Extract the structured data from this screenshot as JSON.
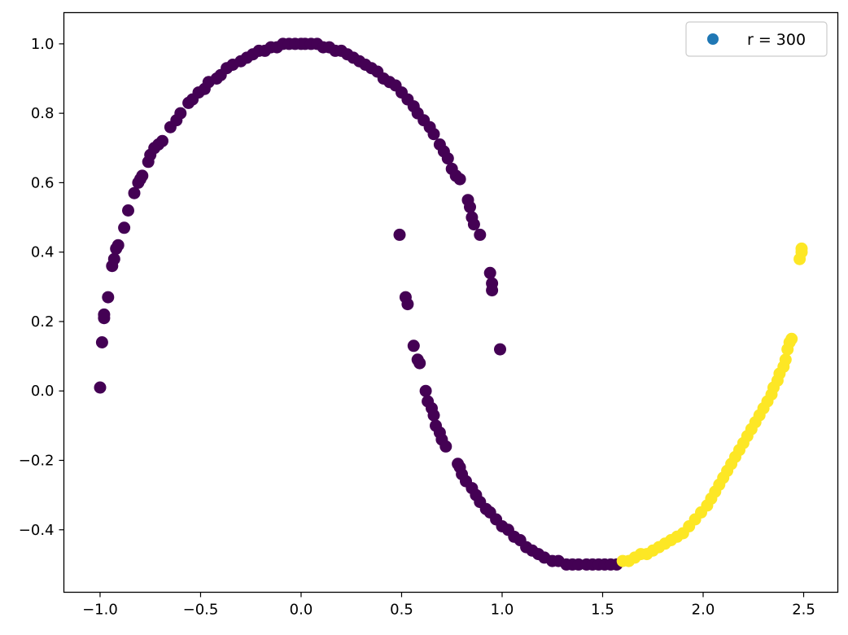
{
  "chart_data": {
    "type": "scatter",
    "title": "",
    "xlabel": "",
    "ylabel": "",
    "xlim": [
      -1.18,
      2.67
    ],
    "ylim": [
      -0.58,
      1.09
    ],
    "grid": false,
    "legend": {
      "placement": "top-right",
      "entries": [
        {
          "label": "r = 300",
          "color": "#1f77b4"
        }
      ]
    },
    "x_ticks": [
      {
        "value": -1.0,
        "label": "−1.0"
      },
      {
        "value": -0.5,
        "label": "−0.5"
      },
      {
        "value": 0.0,
        "label": "0.0"
      },
      {
        "value": 0.5,
        "label": "0.5"
      },
      {
        "value": 1.0,
        "label": "1.0"
      },
      {
        "value": 1.5,
        "label": "1.5"
      },
      {
        "value": 2.0,
        "label": "2.0"
      },
      {
        "value": 2.5,
        "label": "2.5"
      }
    ],
    "y_ticks": [
      {
        "value": -0.4,
        "label": "−0.4"
      },
      {
        "value": -0.2,
        "label": "−0.2"
      },
      {
        "value": 0.0,
        "label": "0.0"
      },
      {
        "value": 0.2,
        "label": "0.2"
      },
      {
        "value": 0.4,
        "label": "0.4"
      },
      {
        "value": 0.6,
        "label": "0.6"
      },
      {
        "value": 0.8,
        "label": "0.8"
      },
      {
        "value": 1.0,
        "label": "1.0"
      }
    ],
    "series": [
      {
        "color": "#440154",
        "points": [
          [
            -1.0,
            0.01
          ],
          [
            -0.99,
            0.14
          ],
          [
            -0.98,
            0.21
          ],
          [
            -0.98,
            0.22
          ],
          [
            -0.96,
            0.27
          ],
          [
            -0.94,
            0.36
          ],
          [
            -0.93,
            0.38
          ],
          [
            -0.92,
            0.41
          ],
          [
            -0.91,
            0.42
          ],
          [
            -0.88,
            0.47
          ],
          [
            -0.86,
            0.52
          ],
          [
            -0.83,
            0.57
          ],
          [
            -0.81,
            0.6
          ],
          [
            -0.8,
            0.61
          ],
          [
            -0.79,
            0.62
          ],
          [
            -0.76,
            0.66
          ],
          [
            -0.75,
            0.68
          ],
          [
            -0.73,
            0.7
          ],
          [
            -0.71,
            0.71
          ],
          [
            -0.69,
            0.72
          ],
          [
            -0.65,
            0.76
          ],
          [
            -0.62,
            0.78
          ],
          [
            -0.6,
            0.8
          ],
          [
            -0.56,
            0.83
          ],
          [
            -0.54,
            0.84
          ],
          [
            -0.51,
            0.86
          ],
          [
            -0.48,
            0.87
          ],
          [
            -0.46,
            0.89
          ],
          [
            -0.42,
            0.9
          ],
          [
            -0.4,
            0.91
          ],
          [
            -0.37,
            0.93
          ],
          [
            -0.34,
            0.94
          ],
          [
            -0.3,
            0.95
          ],
          [
            -0.27,
            0.96
          ],
          [
            -0.24,
            0.97
          ],
          [
            -0.21,
            0.98
          ],
          [
            -0.18,
            0.98
          ],
          [
            -0.15,
            0.99
          ],
          [
            -0.12,
            0.99
          ],
          [
            -0.09,
            1.0
          ],
          [
            -0.06,
            1.0
          ],
          [
            -0.03,
            1.0
          ],
          [
            0.0,
            1.0
          ],
          [
            0.02,
            1.0
          ],
          [
            0.05,
            1.0
          ],
          [
            0.08,
            1.0
          ],
          [
            0.11,
            0.99
          ],
          [
            0.14,
            0.99
          ],
          [
            0.17,
            0.98
          ],
          [
            0.2,
            0.98
          ],
          [
            0.23,
            0.97
          ],
          [
            0.26,
            0.96
          ],
          [
            0.29,
            0.95
          ],
          [
            0.32,
            0.94
          ],
          [
            0.35,
            0.93
          ],
          [
            0.38,
            0.92
          ],
          [
            0.41,
            0.9
          ],
          [
            0.44,
            0.89
          ],
          [
            0.47,
            0.88
          ],
          [
            0.5,
            0.86
          ],
          [
            0.53,
            0.84
          ],
          [
            0.56,
            0.82
          ],
          [
            0.58,
            0.8
          ],
          [
            0.61,
            0.78
          ],
          [
            0.64,
            0.76
          ],
          [
            0.66,
            0.74
          ],
          [
            0.69,
            0.71
          ],
          [
            0.71,
            0.69
          ],
          [
            0.73,
            0.67
          ],
          [
            0.75,
            0.64
          ],
          [
            0.77,
            0.62
          ],
          [
            0.79,
            0.61
          ],
          [
            0.83,
            0.55
          ],
          [
            0.84,
            0.53
          ],
          [
            0.85,
            0.5
          ],
          [
            0.86,
            0.48
          ],
          [
            0.89,
            0.45
          ],
          [
            0.94,
            0.34
          ],
          [
            0.95,
            0.31
          ],
          [
            0.95,
            0.29
          ],
          [
            0.99,
            0.12
          ],
          [
            0.49,
            0.45
          ],
          [
            0.52,
            0.27
          ],
          [
            0.53,
            0.25
          ],
          [
            0.56,
            0.13
          ],
          [
            0.58,
            0.09
          ],
          [
            0.59,
            0.08
          ],
          [
            0.62,
            0.0
          ],
          [
            0.63,
            -0.03
          ],
          [
            0.65,
            -0.05
          ],
          [
            0.66,
            -0.07
          ],
          [
            0.67,
            -0.1
          ],
          [
            0.69,
            -0.12
          ],
          [
            0.7,
            -0.14
          ],
          [
            0.72,
            -0.16
          ],
          [
            0.78,
            -0.21
          ],
          [
            0.79,
            -0.22
          ],
          [
            0.8,
            -0.24
          ],
          [
            0.82,
            -0.26
          ],
          [
            0.85,
            -0.28
          ],
          [
            0.87,
            -0.3
          ],
          [
            0.89,
            -0.32
          ],
          [
            0.92,
            -0.34
          ],
          [
            0.94,
            -0.35
          ],
          [
            0.97,
            -0.37
          ],
          [
            1.0,
            -0.39
          ],
          [
            1.03,
            -0.4
          ],
          [
            1.06,
            -0.42
          ],
          [
            1.09,
            -0.43
          ],
          [
            1.12,
            -0.45
          ],
          [
            1.15,
            -0.46
          ],
          [
            1.18,
            -0.47
          ],
          [
            1.21,
            -0.48
          ],
          [
            1.25,
            -0.49
          ],
          [
            1.28,
            -0.49
          ],
          [
            1.32,
            -0.5
          ],
          [
            1.35,
            -0.5
          ],
          [
            1.38,
            -0.5
          ],
          [
            1.42,
            -0.5
          ],
          [
            1.45,
            -0.5
          ],
          [
            1.48,
            -0.5
          ],
          [
            1.51,
            -0.5
          ],
          [
            1.54,
            -0.5
          ],
          [
            1.57,
            -0.5
          ]
        ]
      },
      {
        "color": "#fde725",
        "points": [
          [
            1.6,
            -0.49
          ],
          [
            1.63,
            -0.49
          ],
          [
            1.66,
            -0.48
          ],
          [
            1.69,
            -0.47
          ],
          [
            1.72,
            -0.47
          ],
          [
            1.75,
            -0.46
          ],
          [
            1.78,
            -0.45
          ],
          [
            1.81,
            -0.44
          ],
          [
            1.84,
            -0.43
          ],
          [
            1.87,
            -0.42
          ],
          [
            1.9,
            -0.41
          ],
          [
            1.93,
            -0.39
          ],
          [
            1.96,
            -0.37
          ],
          [
            1.99,
            -0.35
          ],
          [
            2.02,
            -0.33
          ],
          [
            2.04,
            -0.31
          ],
          [
            2.06,
            -0.29
          ],
          [
            2.08,
            -0.27
          ],
          [
            2.1,
            -0.25
          ],
          [
            2.12,
            -0.23
          ],
          [
            2.14,
            -0.21
          ],
          [
            2.16,
            -0.19
          ],
          [
            2.18,
            -0.17
          ],
          [
            2.2,
            -0.15
          ],
          [
            2.22,
            -0.13
          ],
          [
            2.24,
            -0.11
          ],
          [
            2.26,
            -0.09
          ],
          [
            2.28,
            -0.07
          ],
          [
            2.3,
            -0.05
          ],
          [
            2.32,
            -0.03
          ],
          [
            2.34,
            -0.01
          ],
          [
            2.35,
            0.01
          ],
          [
            2.37,
            0.03
          ],
          [
            2.38,
            0.05
          ],
          [
            2.4,
            0.07
          ],
          [
            2.41,
            0.09
          ],
          [
            2.42,
            0.12
          ],
          [
            2.43,
            0.14
          ],
          [
            2.44,
            0.15
          ],
          [
            2.48,
            0.38
          ],
          [
            2.49,
            0.4
          ],
          [
            2.49,
            0.41
          ]
        ]
      }
    ]
  }
}
